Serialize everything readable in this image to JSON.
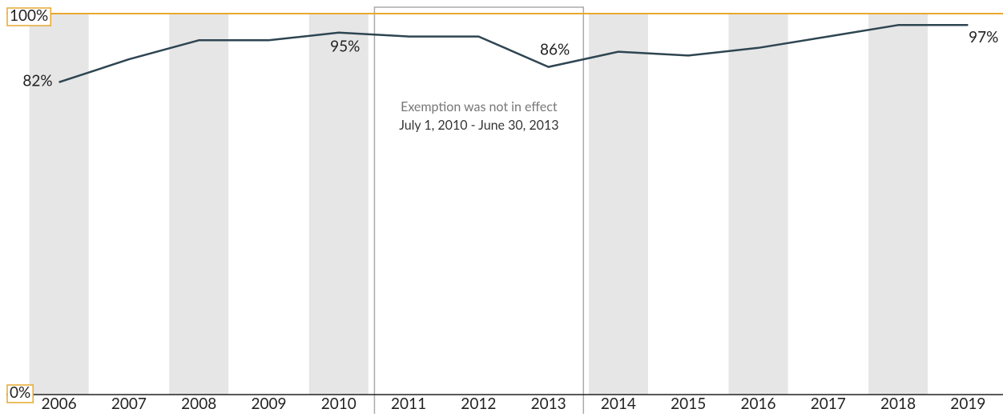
{
  "chart_data": {
    "type": "line",
    "categories": [
      "2006",
      "2007",
      "2008",
      "2009",
      "2010",
      "2011",
      "2012",
      "2013",
      "2014",
      "2015",
      "2016",
      "2017",
      "2018",
      "2019"
    ],
    "series": [
      {
        "color": "#2e4552",
        "values": [
          82,
          88,
          93,
          93,
          95,
          94,
          94,
          86,
          90,
          89,
          91,
          94,
          97,
          97
        ],
        "value_labels": [
          "82%",
          null,
          null,
          null,
          "95%",
          null,
          null,
          "86%",
          null,
          null,
          null,
          null,
          null,
          "97%"
        ]
      }
    ],
    "ylim": [
      0,
      100
    ],
    "yticks": [
      {
        "value": 0,
        "label": "0%"
      },
      {
        "value": 100,
        "label": "100%"
      }
    ],
    "annotations": [
      "Exemption was not in effect",
      "July 1, 2010 - June 30, 2013"
    ]
  }
}
